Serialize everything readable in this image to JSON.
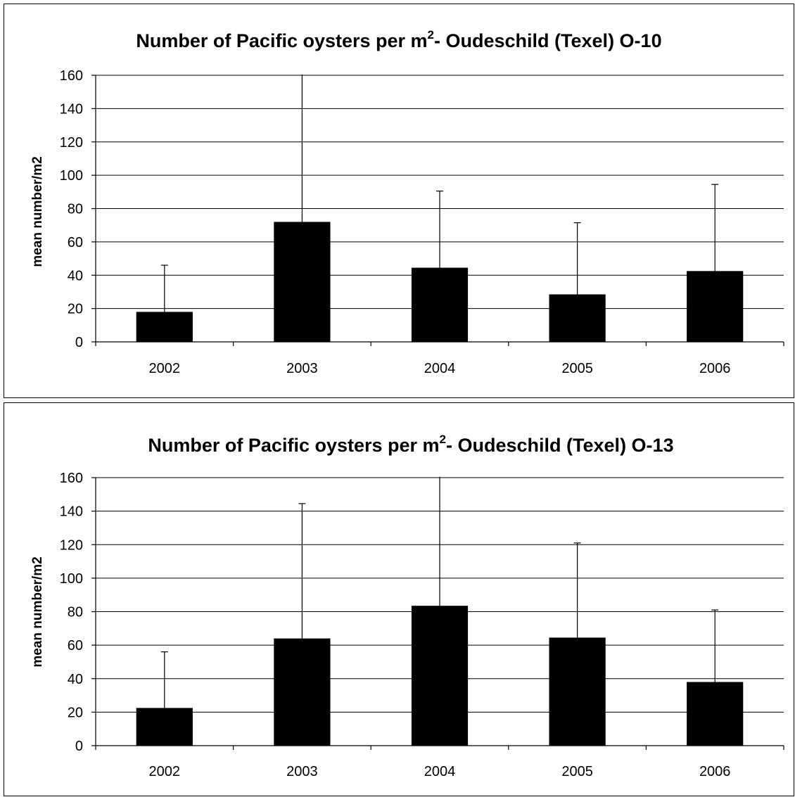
{
  "chart_data": [
    {
      "type": "bar",
      "title": "Number of Pacific oysters per m",
      "title_sup": "2",
      "title_suffix": "- Oudeschild (Texel) O-10",
      "ylabel": "mean number/m2",
      "xlabel": "",
      "categories": [
        "2002",
        "2003",
        "2004",
        "2005",
        "2006"
      ],
      "values": [
        18,
        72,
        44.5,
        28.5,
        42.5
      ],
      "error_upper": [
        46,
        161,
        90.5,
        71.5,
        94.5
      ],
      "ylim": [
        0,
        160
      ],
      "yticks": [
        0,
        20,
        40,
        60,
        80,
        100,
        120,
        140,
        160
      ],
      "grid": true,
      "legend": "none",
      "bar_color": "#000000"
    },
    {
      "type": "bar",
      "title": "Number of Pacific oysters per m",
      "title_sup": "2",
      "title_suffix": "- Oudeschild (Texel) O-13",
      "ylabel": "mean number/m2",
      "xlabel": "",
      "categories": [
        "2002",
        "2003",
        "2004",
        "2005",
        "2006"
      ],
      "values": [
        22.5,
        64,
        83.5,
        64.5,
        38
      ],
      "error_upper": [
        56,
        144.5,
        161,
        121,
        81
      ],
      "ylim": [
        0,
        160
      ],
      "yticks": [
        0,
        20,
        40,
        60,
        80,
        100,
        120,
        140,
        160
      ],
      "grid": true,
      "legend": "none",
      "bar_color": "#000000"
    }
  ]
}
